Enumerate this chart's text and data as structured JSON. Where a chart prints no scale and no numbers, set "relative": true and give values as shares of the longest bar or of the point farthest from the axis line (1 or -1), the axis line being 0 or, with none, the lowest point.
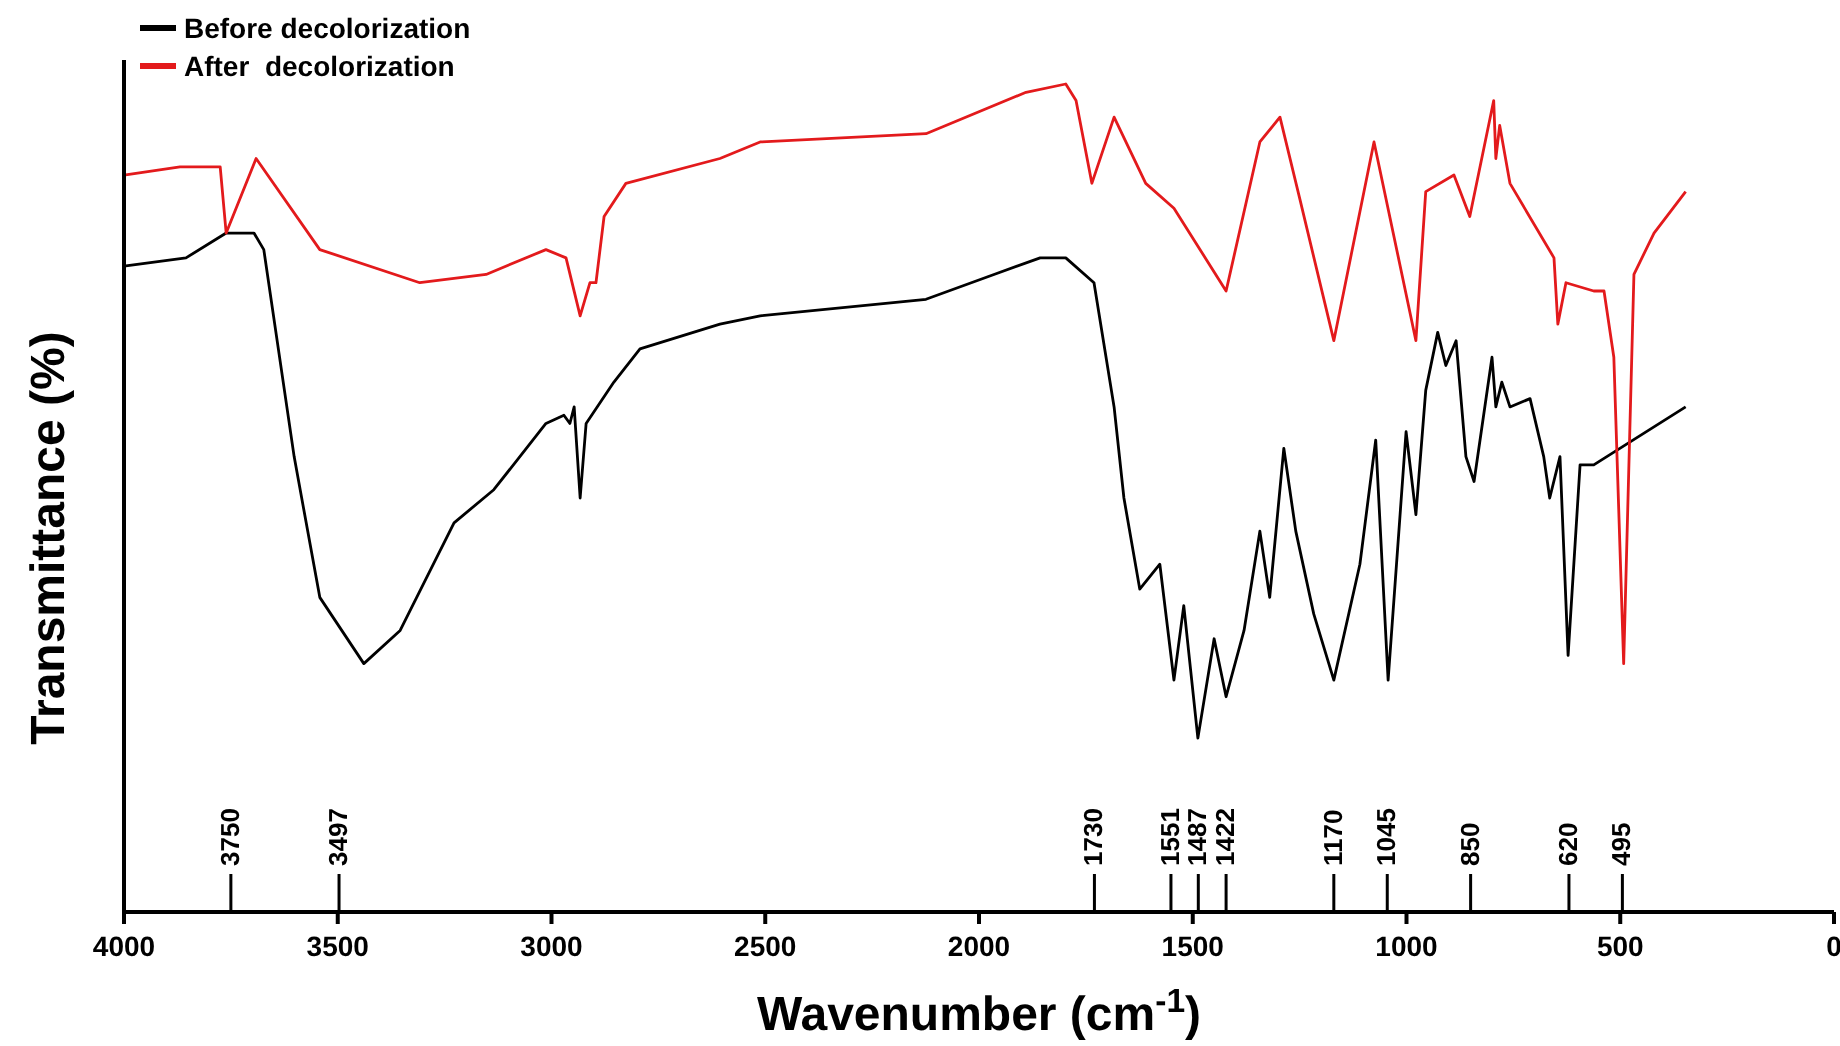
{
  "chart_data": {
    "type": "line",
    "relative": true,
    "xlabel": "Wavenumber (cm$^{-1}$)",
    "ylabel": "Transmittance (%)",
    "xlim": [
      4000,
      0
    ],
    "xticks": [
      4000,
      3500,
      3000,
      2500,
      2000,
      1500,
      1000,
      500,
      0
    ],
    "legend": "top left",
    "grid": false,
    "marker": "none",
    "line_style": "solid",
    "series": [
      {
        "name": "Before decolorization",
        "color": "#000000",
        "x": [
          4000,
          3855,
          3761,
          3696,
          3673,
          3602,
          3542,
          3439,
          3354,
          3228,
          3135,
          3013,
          2971,
          2957,
          2947,
          2933,
          2919,
          2854,
          2793,
          2606,
          2512,
          2124,
          1965,
          1857,
          1797,
          1731,
          1684,
          1661,
          1624,
          1577,
          1544,
          1521,
          1488,
          1450,
          1422,
          1380,
          1343,
          1320,
          1287,
          1259,
          1217,
          1170,
          1109,
          1072,
          1043,
          1001,
          978,
          955,
          927,
          908,
          884,
          861,
          842,
          800,
          791,
          777,
          758,
          711,
          679,
          665,
          641,
          622,
          594,
          562,
          347
        ],
        "values": [
          0.78,
          0.79,
          0.82,
          0.82,
          0.8,
          0.55,
          0.38,
          0.3,
          0.34,
          0.47,
          0.51,
          0.59,
          0.6,
          0.59,
          0.61,
          0.5,
          0.59,
          0.64,
          0.68,
          0.71,
          0.72,
          0.74,
          0.77,
          0.79,
          0.79,
          0.76,
          0.61,
          0.5,
          0.39,
          0.42,
          0.28,
          0.37,
          0.21,
          0.33,
          0.26,
          0.34,
          0.46,
          0.38,
          0.56,
          0.46,
          0.36,
          0.28,
          0.42,
          0.57,
          0.28,
          0.58,
          0.48,
          0.63,
          0.7,
          0.66,
          0.69,
          0.55,
          0.52,
          0.67,
          0.61,
          0.64,
          0.61,
          0.62,
          0.55,
          0.5,
          0.55,
          0.31,
          0.54,
          0.54,
          0.61
        ]
      },
      {
        "name": "After  decolorization",
        "color": "#e31a1c",
        "x": [
          4000,
          3869,
          3775,
          3761,
          3691,
          3542,
          3308,
          3153,
          3013,
          2966,
          2933,
          2910,
          2896,
          2877,
          2826,
          2606,
          2512,
          2124,
          1890,
          1797,
          1773,
          1736,
          1684,
          1610,
          1544,
          1422,
          1343,
          1296,
          1249,
          1170,
          1076,
          978,
          955,
          889,
          852,
          796,
          791,
          782,
          758,
          655,
          646,
          627,
          562,
          538,
          515,
          492,
          468,
          421,
          347
        ],
        "values": [
          0.89,
          0.9,
          0.9,
          0.82,
          0.91,
          0.8,
          0.76,
          0.77,
          0.8,
          0.79,
          0.72,
          0.76,
          0.76,
          0.84,
          0.88,
          0.91,
          0.93,
          0.94,
          0.99,
          1,
          0.98,
          0.88,
          0.96,
          0.88,
          0.85,
          0.75,
          0.93,
          0.96,
          0.86,
          0.69,
          0.93,
          0.69,
          0.87,
          0.89,
          0.84,
          0.98,
          0.91,
          0.95,
          0.88,
          0.79,
          0.71,
          0.76,
          0.75,
          0.75,
          0.67,
          0.3,
          0.77,
          0.82,
          0.87
        ]
      }
    ],
    "ref_lines": [
      {
        "axis": "x",
        "value": 3750,
        "label": "3750"
      },
      {
        "axis": "x",
        "value": 3497,
        "label": "3497"
      },
      {
        "axis": "x",
        "value": 1730,
        "label": "1730"
      },
      {
        "axis": "x",
        "value": 1551,
        "label": "1551"
      },
      {
        "axis": "x",
        "value": 1487,
        "label": "1487"
      },
      {
        "axis": "x",
        "value": 1422,
        "label": "1422"
      },
      {
        "axis": "x",
        "value": 1170,
        "label": "1170"
      },
      {
        "axis": "x",
        "value": 1045,
        "label": "1045"
      },
      {
        "axis": "x",
        "value": 850,
        "label": "850"
      },
      {
        "axis": "x",
        "value": 620,
        "label": "620"
      },
      {
        "axis": "x",
        "value": 495,
        "label": "495"
      }
    ]
  }
}
